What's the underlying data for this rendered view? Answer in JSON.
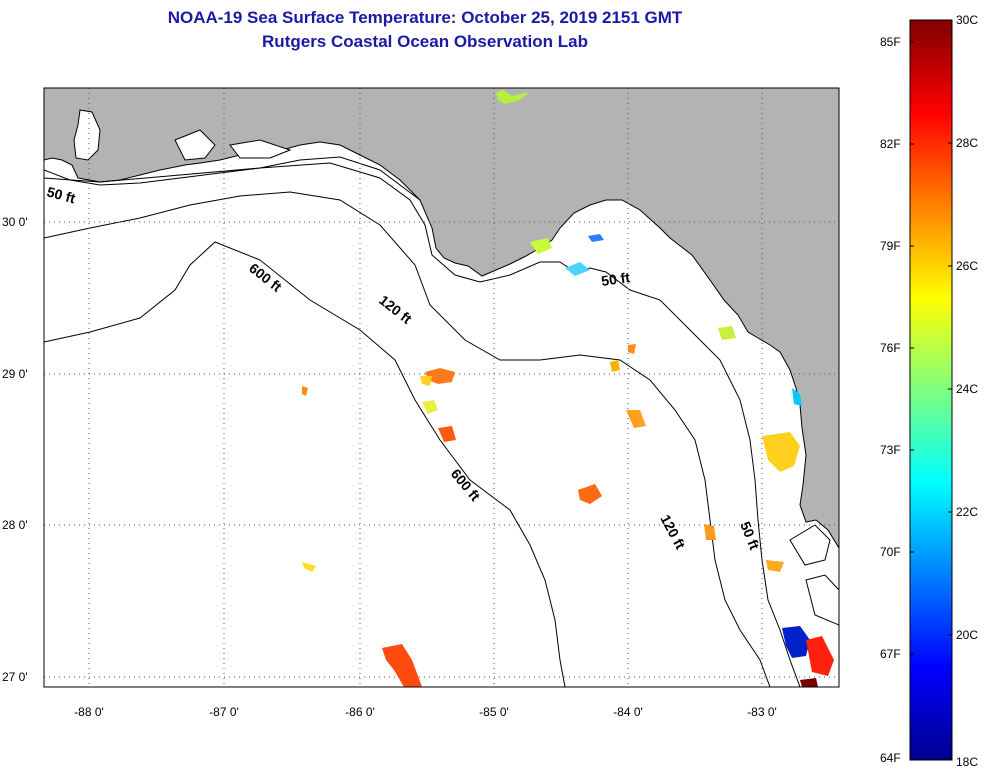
{
  "title_line1": "NOAA-19 Sea Surface Temperature:  October 25, 2019 2151 GMT",
  "title_line2": "Rutgers Coastal Ocean Observation Lab",
  "map": {
    "land_color": "#b3b3b3",
    "water_color": "#ffffff",
    "longitude_labels": [
      "-88 0'",
      "-87 0'",
      "-86 0'",
      "-85 0'",
      "-84 0'",
      "-83 0'"
    ],
    "latitude_labels": [
      "30 0'",
      "29 0'",
      "28 0'",
      "27 0'"
    ],
    "contour_labels": {
      "c50_west": "50 ft",
      "c600_north": "600 ft",
      "c120_north": "120 ft",
      "c50_east": "50 ft",
      "c600_south": "600 ft",
      "c120_south": "120 ft",
      "c50_south": "50 ft"
    }
  },
  "colorbar": {
    "fahrenheit_labels": [
      "85F",
      "82F",
      "79F",
      "76F",
      "73F",
      "70F",
      "67F",
      "64F"
    ],
    "celsius_labels": [
      "30C",
      "28C",
      "26C",
      "24C",
      "22C",
      "20C",
      "18C"
    ],
    "min_c": 18,
    "max_c": 30,
    "colormap": "jet"
  }
}
